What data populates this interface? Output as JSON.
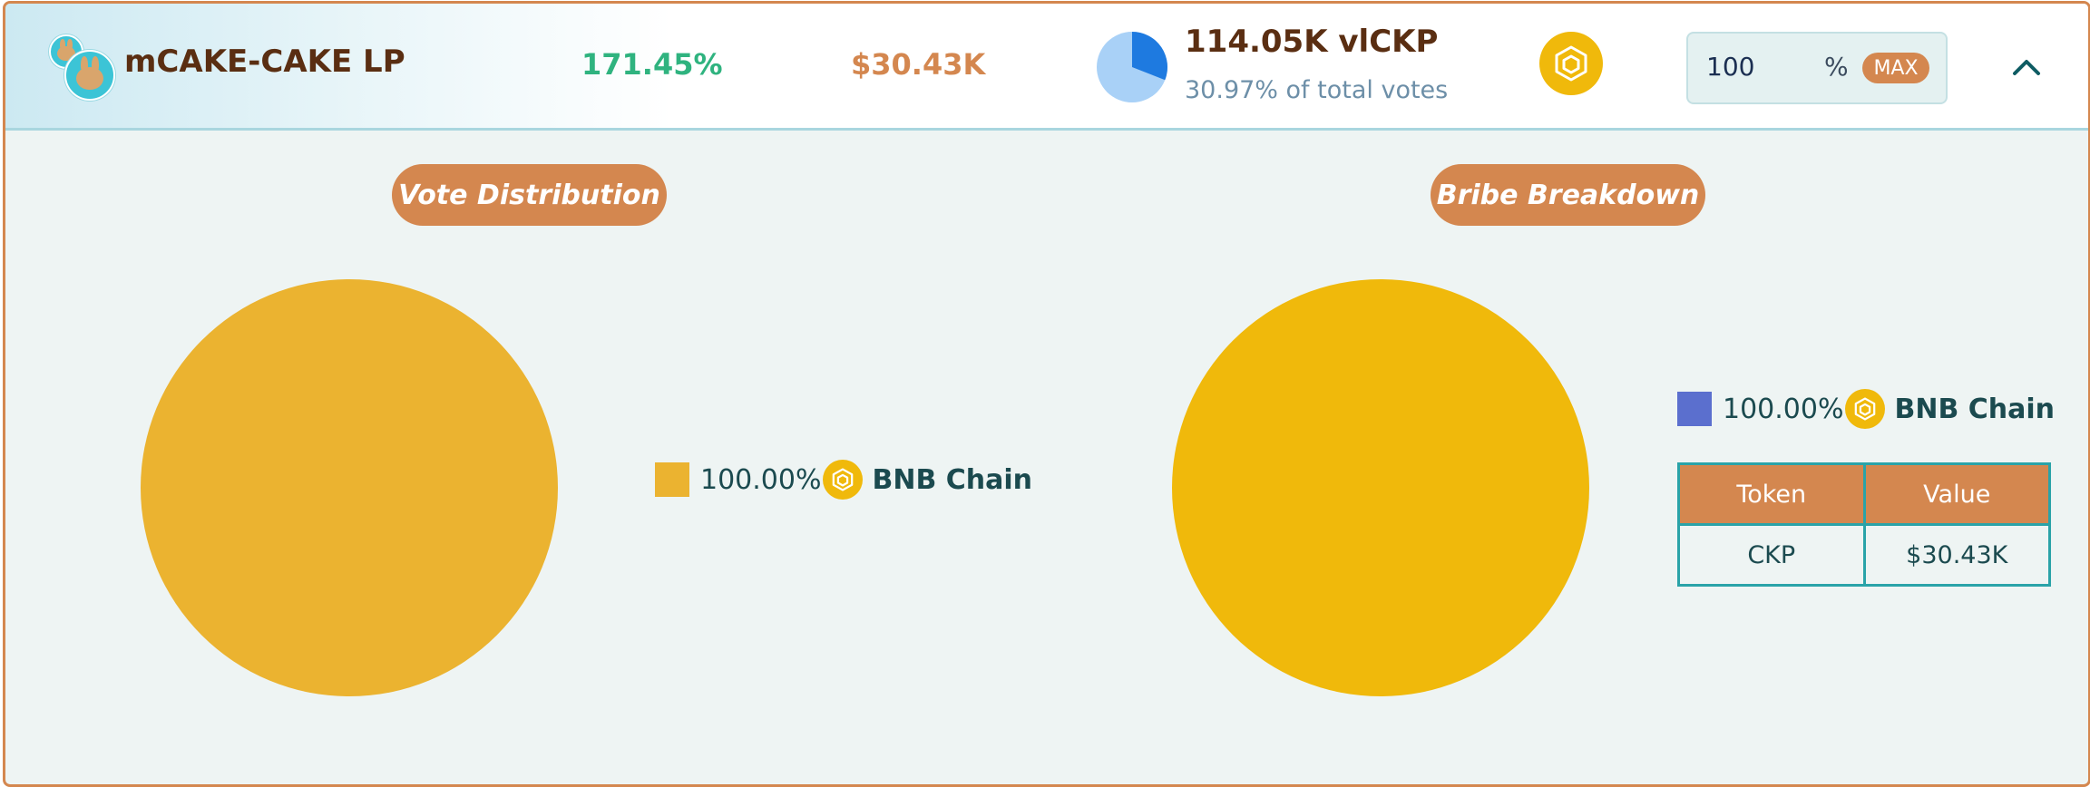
{
  "header": {
    "pool_name": "mCAKE-CAKE LP",
    "apr": "171.45%",
    "tvl": "$30.43K",
    "votes_value": "114.05K vlCKP",
    "votes_share": "30.97% of total votes",
    "vote_share_fraction": 0.3097,
    "chain_icon": "bnb-chain-icon",
    "percent_input": "100",
    "percent_symbol": "%",
    "max_label": "MAX",
    "collapse_icon": "chevron-up-icon"
  },
  "vote_distribution": {
    "title": "Vote Distribution",
    "legend": [
      {
        "percent": "100.00%",
        "name": "BNB Chain",
        "color": "#ebb330"
      }
    ]
  },
  "bribe_breakdown": {
    "title": "Bribe Breakdown",
    "legend": [
      {
        "percent": "100.00%",
        "name": "BNB Chain",
        "color": "#5b6fce"
      }
    ],
    "table": {
      "columns": [
        "Token",
        "Value"
      ],
      "rows": [
        [
          "CKP",
          "$30.43K"
        ]
      ]
    }
  },
  "colors": {
    "accent": "#d4874f",
    "apr_green": "#2fb37f",
    "title_brown": "#5a2e12",
    "pie_vote": "#ebb330",
    "pie_bribe": "#f0b90b",
    "mini_pie_light": "#a9d1f7",
    "mini_pie_dark": "#1e7ae0",
    "teal_border": "#2aa3a8"
  },
  "chart_data": [
    {
      "type": "pie",
      "title": "Vote Distribution",
      "categories": [
        "BNB Chain"
      ],
      "values": [
        100.0
      ]
    },
    {
      "type": "pie",
      "title": "Bribe Breakdown",
      "categories": [
        "BNB Chain"
      ],
      "values": [
        100.0
      ]
    }
  ]
}
